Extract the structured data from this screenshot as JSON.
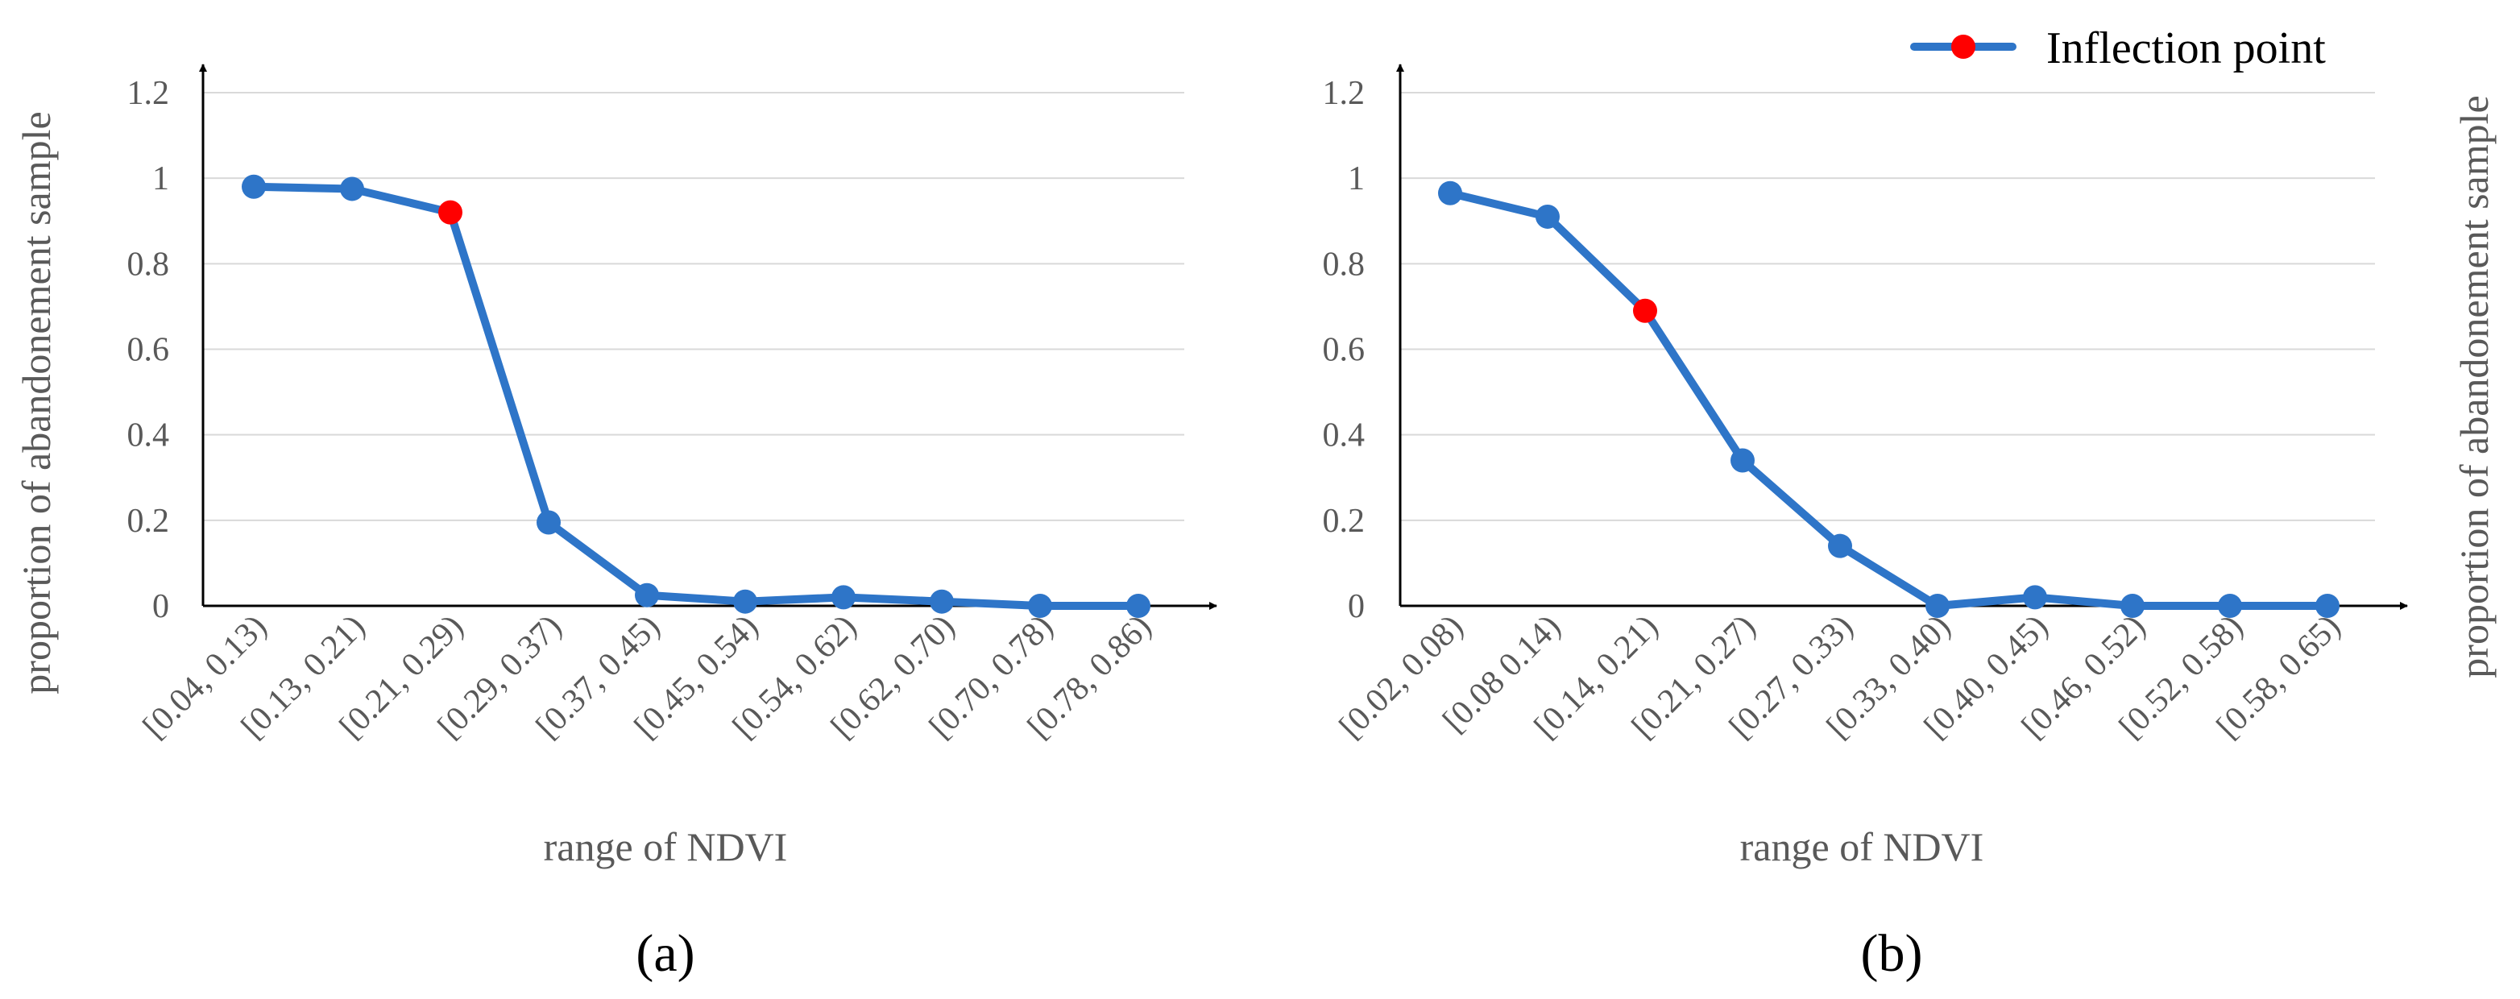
{
  "legend": {
    "label": "Inflection point"
  },
  "colors": {
    "line": "#2E75C8",
    "highlight": "#FF0000",
    "grid": "#D9D9D9",
    "axis": "#000000",
    "text": "#595959"
  },
  "chart_data": [
    {
      "type": "line",
      "panel_label": "(a)",
      "xlabel": "range of NDVI",
      "ylabel": "proportion of abandonement sample",
      "ylim": [
        0,
        1.2
      ],
      "yticks": [
        "0",
        "0.2",
        "0.4",
        "0.6",
        "0.8",
        "1",
        "1.2"
      ],
      "grid": true,
      "categories": [
        "[0.04, 0.13)",
        "[0.13, 0.21)",
        "[0.21, 0.29)",
        "[0.29, 0.37)",
        "[0.37, 0.45)",
        "[0.45, 0.54)",
        "[0.54, 0.62)",
        "[0.62, 0.70)",
        "[0.70, 0.78)",
        "[0.78, 0.86)"
      ],
      "values": [
        0.98,
        0.975,
        0.92,
        0.195,
        0.025,
        0.01,
        0.02,
        0.01,
        0.0,
        0.0
      ],
      "inflection_index": 2
    },
    {
      "type": "line",
      "panel_label": "(b)",
      "xlabel": "range of NDVI",
      "ylabel": "proportion of abandonement sample",
      "ylim": [
        0,
        1.2
      ],
      "yticks": [
        "0",
        "0.2",
        "0.4",
        "0.6",
        "0.8",
        "1",
        "1.2"
      ],
      "grid": true,
      "legend_position": "top-right",
      "categories": [
        "[0.02, 0.08)",
        "[0.08 0.14)",
        "[0.14, 0.21)",
        "[0.21, 0.27)",
        "[0.27, 0.33)",
        "[0.33, 0.40)",
        "[0.40, 0.45)",
        "[0.46, 0.52)",
        "[0.52, 0.58)",
        "[0.58, 0.65)"
      ],
      "values": [
        0.965,
        0.91,
        0.69,
        0.34,
        0.14,
        0.0,
        0.02,
        0.0,
        0.0,
        0.0
      ],
      "inflection_index": 2
    }
  ]
}
